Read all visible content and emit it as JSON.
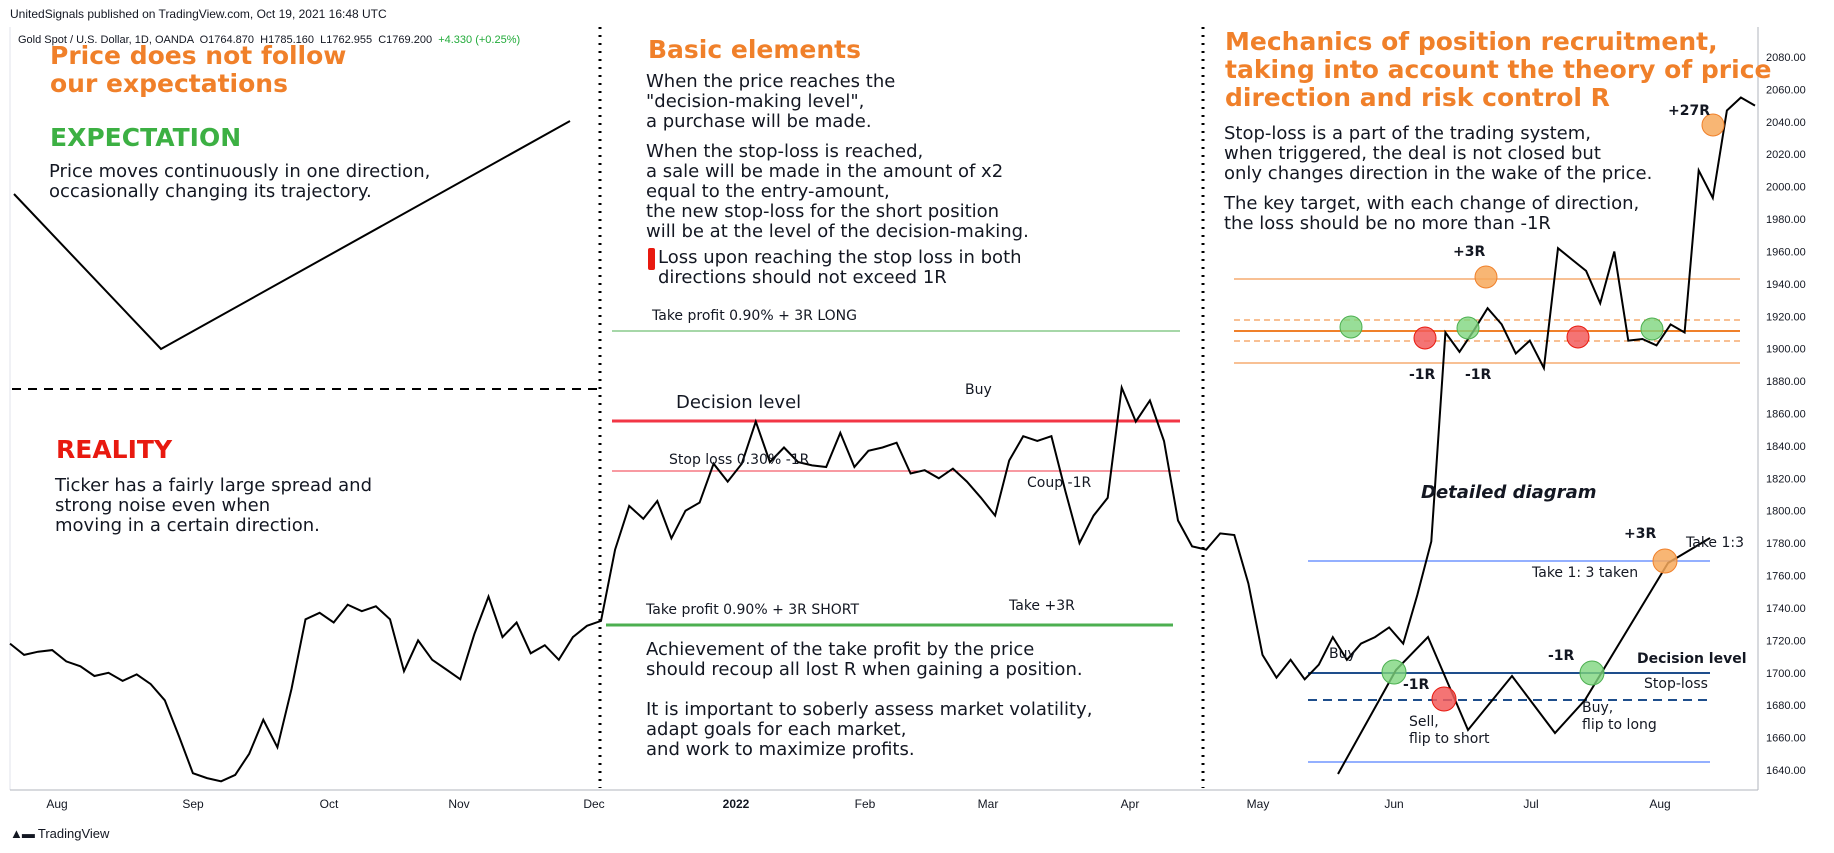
{
  "header": {
    "published": "UnitedSignals published on TradingView.com, Oct 19, 2021 16:48 UTC",
    "symbol": "Gold Spot / U.S. Dollar, 1D, OANDA",
    "o": "O1764.870",
    "h": "H1785.160",
    "l": "L1762.955",
    "c": "C1769.200",
    "chg": "+4.330 (+0.25%)"
  },
  "panel1": {
    "title_line1": "Price does not follow",
    "title_line2": "our expectations",
    "expectation": "EXPECTATION",
    "expectation_text": "Price moves continuously in one direction,\noccasionally changing its trajectory.",
    "reality": "REALITY",
    "reality_text": "Ticker has a fairly large spread and\nstrong noise even when\nmoving in a certain direction."
  },
  "panel2": {
    "title": "Basic elements",
    "text1": "When the price reaches the\n\"decision-making level\",\na purchase will be made.",
    "text2": "When the stop-loss is reached,\na sale will be made in the amount of x2\nequal to the entry-amount,\nthe new stop-loss for the short position\nwill be at the level of the decision-making.",
    "warning_icon": "exclamation-icon",
    "text3": "Loss upon reaching the stop loss in both\ndirections should not exceed 1R",
    "tp_long": "Take profit 0.90% + 3R LONG",
    "decision_level": "Decision level",
    "stop_loss": "Stop loss 0.30% -1R",
    "buy": "Buy",
    "coup": "Coup -1R",
    "tp_short": "Take profit 0.90% + 3R SHORT",
    "take_3r": "Take +3R",
    "text4": "Achievement of the take profit by the price\nshould recoup all lost R when gaining a position.",
    "text5": "It is important to soberly assess market volatility,\nadapt goals for each market,\nand work to maximize profits."
  },
  "panel3": {
    "title": "Mechanics of position recruitment,\ntaking into account the theory of price\ndirection and risk control R",
    "text1": "Stop-loss is a part of the trading system,\nwhen triggered, the deal is not closed but\nonly changes direction in the wake of the price.",
    "text2": "The key target, with each change of direction,\nthe loss should be no more than -1R",
    "plus27r": "+27R",
    "plus3r_top": "+3R",
    "minus1r_a": "-1R",
    "minus1r_b": "-1R",
    "detailed": "Detailed diagram",
    "plus3r": "+3R",
    "take13": "Take 1:3",
    "take13_taken": "Take 1: 3 taken",
    "buy": "Buy",
    "minus1r_c": "-1R",
    "minus1r_d": "-1R",
    "decision_level": "Decision level",
    "stop_loss": "Stop-loss",
    "sell": "Sell,\nflip to short",
    "buy_flip": "Buy,\nflip to long"
  },
  "brand": "TradingView",
  "colors": {
    "orange": "#f0802a",
    "green_text": "#3cb043",
    "red_text": "#e8190f",
    "line_green": "#4caf50",
    "line_red": "#f23645",
    "blue": "#2962ff",
    "circle_green": "#7ed67e",
    "circle_red": "#f25c5c",
    "circle_orange": "#f7a95c"
  },
  "chart_data": {
    "type": "line",
    "title": "Gold Spot / U.S. Dollar, 1D, OANDA",
    "x_ticks": [
      "Aug",
      "Sep",
      "Oct",
      "Nov",
      "Dec",
      "2022",
      "Feb",
      "Mar",
      "Apr",
      "May",
      "Jun",
      "Jul",
      "Aug"
    ],
    "y_ticks": [
      1640,
      1660,
      1680,
      1700,
      1720,
      1740,
      1760,
      1780,
      1800,
      1820,
      1840,
      1860,
      1880,
      1900,
      1920,
      1940,
      1960,
      1980,
      2000,
      2020,
      2040,
      2060,
      2080
    ],
    "ylim": [
      1625,
      2090
    ],
    "series": [
      {
        "values": [
          1718,
          1711,
          1713,
          1714,
          1707,
          1704,
          1698,
          1700,
          1695,
          1699,
          1693,
          1683,
          1661,
          1638,
          1635,
          1633,
          1637,
          1650,
          1671,
          1654,
          1690,
          1733,
          1737,
          1731,
          1742,
          1738,
          1741,
          1733,
          1701,
          1720,
          1708,
          1702,
          1696,
          1724,
          1747,
          1722,
          1731,
          1712,
          1717,
          1708,
          1722,
          1729,
          1732,
          1776,
          1803,
          1795,
          1806,
          1783,
          1800,
          1805,
          1829,
          1818,
          1829,
          1855,
          1830,
          1839,
          1830,
          1828,
          1827,
          1848,
          1827,
          1837,
          1839,
          1842,
          1823,
          1825,
          1820,
          1826,
          1818,
          1808,
          1797,
          1831,
          1846,
          1843,
          1846,
          1812,
          1780,
          1797,
          1808,
          1876,
          1855,
          1868,
          1843,
          1794,
          1778,
          1776,
          1786,
          1785,
          1755,
          1711,
          1697,
          1708,
          1696,
          1705,
          1722,
          1708,
          1718,
          1722,
          1728,
          1718,
          1748,
          1781,
          1910,
          1898,
          1911,
          1925,
          1915,
          1897,
          1905,
          1888,
          1962,
          1955,
          1948,
          1928,
          1960,
          1905,
          1906,
          1902,
          1915,
          1910,
          2010,
          1993,
          2047,
          2055,
          2050
        ]
      },
      {
        "name": "Expectation",
        "values": [
          1990,
          1900,
          2040
        ]
      }
    ],
    "levels": [
      {
        "label": "Take profit 0.90% + 3R LONG",
        "value": 1893
      },
      {
        "label": "Decision level",
        "value": 1856
      },
      {
        "label": "Stop loss 0.30% -1R",
        "value": 1825
      },
      {
        "label": "Take profit 0.90% + 3R SHORT",
        "value": 1730
      }
    ],
    "grid": false,
    "legend": "none"
  }
}
